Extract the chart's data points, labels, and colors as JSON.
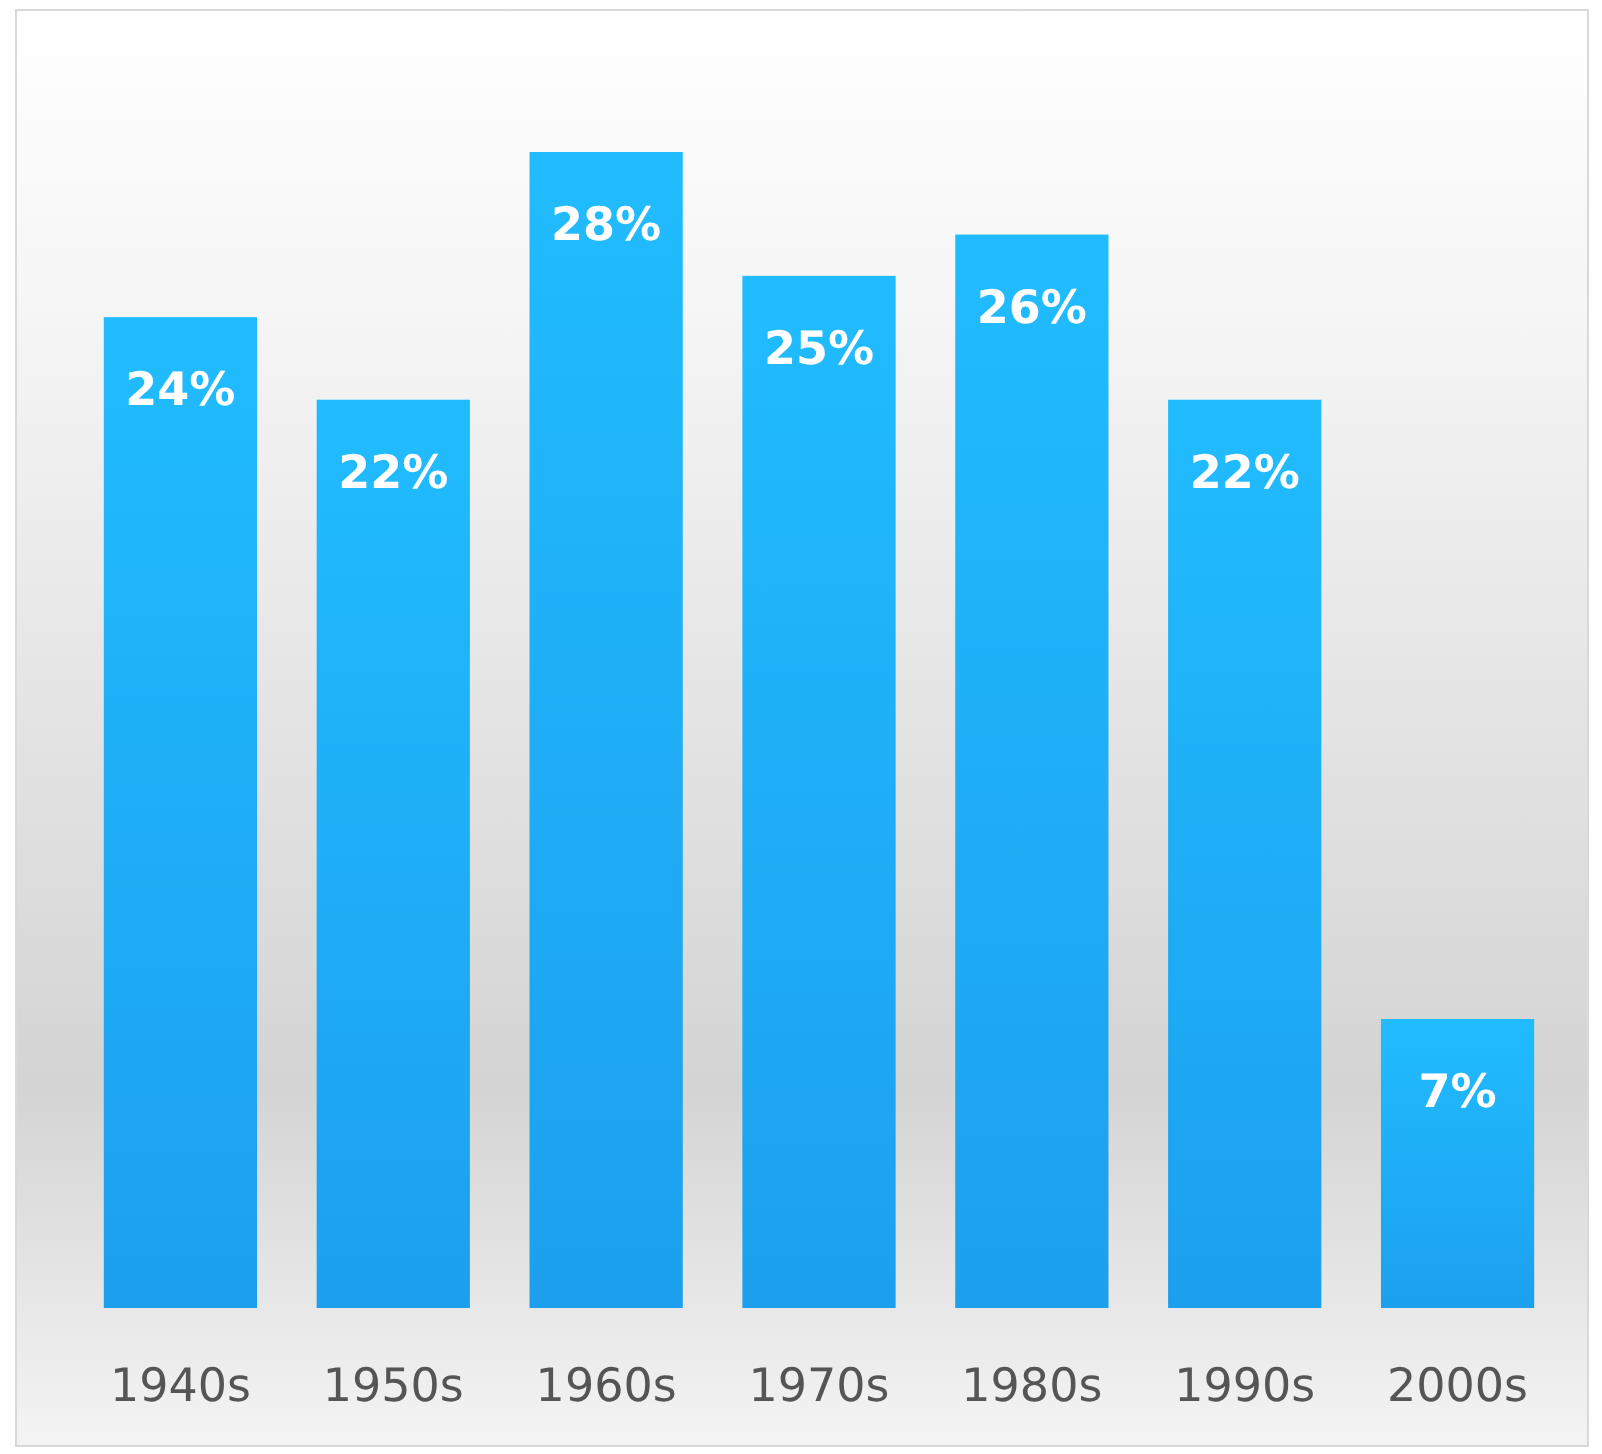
{
  "chart_data": {
    "type": "bar",
    "categories": [
      "1940s",
      "1950s",
      "1960s",
      "1970s",
      "1980s",
      "1990s",
      "2000s"
    ],
    "values": [
      24,
      22,
      28,
      25,
      26,
      22,
      7
    ],
    "value_labels": [
      "24%",
      "22%",
      "28%",
      "25%",
      "26%",
      "22%",
      "7%"
    ],
    "color": "#1ea9fb"
  }
}
